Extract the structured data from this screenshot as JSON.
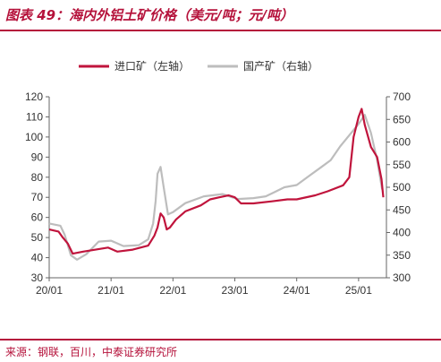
{
  "header": {
    "title": "图表 49：海内外铝土矿价格（美元/吨；元/吨）"
  },
  "footer": {
    "source": "来源：钢联，百川，中泰证券研究所"
  },
  "colors": {
    "accent": "#b5123b",
    "series_left": "#c0143c",
    "series_right": "#bdbdbd"
  },
  "chart_data": {
    "type": "line",
    "title": "",
    "xlabel": "",
    "ylabel": "",
    "x_ticks": [
      "20/01",
      "21/01",
      "22/01",
      "23/01",
      "24/01",
      "25/01"
    ],
    "y_left_ticks": [
      30,
      40,
      50,
      60,
      70,
      80,
      90,
      100,
      110,
      120
    ],
    "y_right_ticks": [
      300,
      350,
      400,
      450,
      500,
      550,
      600,
      650,
      700
    ],
    "ylim_left": [
      30,
      120
    ],
    "ylim_right": [
      300,
      700
    ],
    "xlim": [
      2020.0,
      2025.45
    ],
    "legend_position": "top",
    "series": [
      {
        "name": "进口矿（左轴）",
        "axis": "left",
        "points": [
          [
            2020.0,
            54
          ],
          [
            2020.15,
            53
          ],
          [
            2020.22,
            50
          ],
          [
            2020.3,
            47
          ],
          [
            2020.38,
            42
          ],
          [
            2020.55,
            43
          ],
          [
            2020.75,
            44
          ],
          [
            2020.95,
            45
          ],
          [
            2021.1,
            43
          ],
          [
            2021.35,
            44
          ],
          [
            2021.6,
            46
          ],
          [
            2021.7,
            51
          ],
          [
            2021.75,
            55
          ],
          [
            2021.8,
            62
          ],
          [
            2021.85,
            60
          ],
          [
            2021.9,
            54
          ],
          [
            2021.95,
            55
          ],
          [
            2022.05,
            59
          ],
          [
            2022.2,
            63
          ],
          [
            2022.45,
            66
          ],
          [
            2022.6,
            69
          ],
          [
            2022.75,
            70
          ],
          [
            2022.9,
            71
          ],
          [
            2023.0,
            70
          ],
          [
            2023.1,
            67
          ],
          [
            2023.3,
            67
          ],
          [
            2023.6,
            68
          ],
          [
            2023.85,
            69
          ],
          [
            2024.0,
            69
          ],
          [
            2024.3,
            71
          ],
          [
            2024.5,
            73
          ],
          [
            2024.75,
            76
          ],
          [
            2024.85,
            80
          ],
          [
            2024.92,
            100
          ],
          [
            2025.0,
            110
          ],
          [
            2025.05,
            114
          ],
          [
            2025.1,
            106
          ],
          [
            2025.2,
            95
          ],
          [
            2025.3,
            90
          ],
          [
            2025.37,
            79
          ],
          [
            2025.4,
            70
          ]
        ]
      },
      {
        "name": "国产矿（右轴）",
        "axis": "right",
        "points": [
          [
            2020.0,
            420
          ],
          [
            2020.18,
            415
          ],
          [
            2020.25,
            395
          ],
          [
            2020.35,
            350
          ],
          [
            2020.45,
            340
          ],
          [
            2020.6,
            352
          ],
          [
            2020.8,
            380
          ],
          [
            2021.0,
            382
          ],
          [
            2021.2,
            370
          ],
          [
            2021.45,
            372
          ],
          [
            2021.6,
            385
          ],
          [
            2021.68,
            420
          ],
          [
            2021.72,
            470
          ],
          [
            2021.75,
            530
          ],
          [
            2021.8,
            545
          ],
          [
            2021.85,
            500
          ],
          [
            2021.92,
            440
          ],
          [
            2022.0,
            445
          ],
          [
            2022.2,
            465
          ],
          [
            2022.5,
            480
          ],
          [
            2022.8,
            485
          ],
          [
            2022.95,
            478
          ],
          [
            2023.05,
            474
          ],
          [
            2023.3,
            476
          ],
          [
            2023.5,
            480
          ],
          [
            2023.65,
            490
          ],
          [
            2023.8,
            500
          ],
          [
            2024.0,
            505
          ],
          [
            2024.2,
            525
          ],
          [
            2024.4,
            545
          ],
          [
            2024.55,
            560
          ],
          [
            2024.7,
            590
          ],
          [
            2024.85,
            615
          ],
          [
            2025.0,
            640
          ],
          [
            2025.1,
            660
          ],
          [
            2025.2,
            620
          ],
          [
            2025.3,
            560
          ],
          [
            2025.38,
            495
          ]
        ]
      }
    ]
  }
}
